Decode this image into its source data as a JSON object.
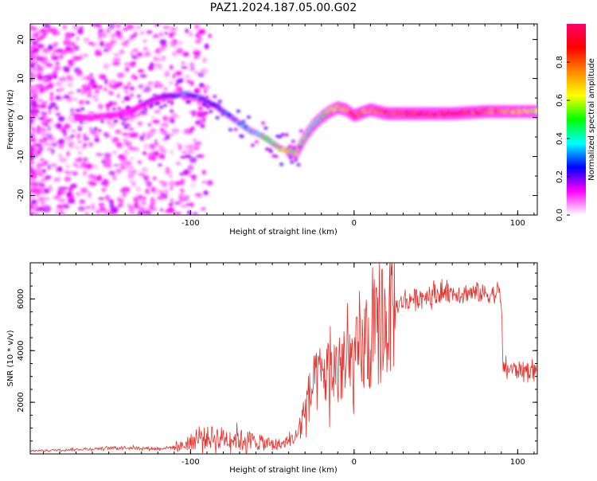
{
  "title": "PAZ1.2024.187.05.00.G02",
  "chart_data": [
    {
      "type": "heatmap",
      "xlabel": "Height of straight line (km)",
      "ylabel": "Frequency (Hz)",
      "xlim": [
        -198,
        112
      ],
      "ylim": [
        -25,
        24
      ],
      "xticks": [
        -100,
        0,
        100
      ],
      "yticks": [
        -20,
        -10,
        0,
        10,
        20
      ],
      "colorbar": {
        "label": "Normalized spectral amplitude",
        "range": [
          0,
          1
        ],
        "ticks": [
          "0.0",
          "0.2",
          "0.4",
          "0.6",
          "0.8"
        ],
        "colormap": [
          "#ffffff",
          "#ff00ff",
          "#0000ff",
          "#00ffff",
          "#00ff00",
          "#ffff00",
          "#ff8800",
          "#ff0000",
          "#ff0066"
        ]
      },
      "ridge": {
        "x": [
          -160,
          -140,
          -120,
          -105,
          -95,
          -85,
          -75,
          -65,
          -55,
          -45,
          -35,
          -30,
          -25,
          -20,
          -15,
          -10,
          -5,
          0,
          10,
          20,
          40,
          60,
          80,
          100,
          112
        ],
        "frequency": [
          0,
          1,
          5,
          6,
          5,
          3,
          0,
          -3,
          -5,
          -8,
          -9,
          -5,
          -2,
          0,
          1.5,
          2.5,
          2,
          0.5,
          2,
          1,
          1,
          1,
          1.5,
          1.5,
          1.5
        ],
        "amplitude": [
          0.12,
          0.12,
          0.18,
          0.3,
          0.28,
          0.25,
          0.3,
          0.35,
          0.45,
          0.6,
          0.55,
          0.5,
          0.45,
          0.5,
          0.6,
          0.65,
          0.7,
          0.8,
          0.75,
          0.9,
          0.95,
          0.95,
          0.85,
          0.7,
          0.6
        ]
      }
    },
    {
      "type": "line",
      "xlabel": "Height of straight line (km)",
      "ylabel": "SNR (10 * v/v)",
      "xlim": [
        -198,
        112
      ],
      "ylim": [
        0,
        7400
      ],
      "xticks": [
        -100,
        0,
        100
      ],
      "yticks": [
        2000,
        4000,
        6000
      ],
      "color": "#e8302b",
      "series": [
        {
          "x": [
            -198,
            -180,
            -160,
            -140,
            -120,
            -105,
            -95,
            -85,
            -75,
            -65,
            -55,
            -45,
            -40,
            -35,
            -30,
            -25,
            -20,
            -15,
            -10,
            -5,
            0,
            10,
            20,
            25,
            30,
            35,
            40,
            50,
            60,
            70,
            80,
            85,
            90,
            91,
            95,
            100,
            105,
            112
          ],
          "y": [
            120,
            150,
            200,
            250,
            200,
            300,
            600,
            650,
            600,
            550,
            400,
            350,
            500,
            700,
            1800,
            2600,
            3000,
            3200,
            3300,
            3400,
            3600,
            4200,
            5200,
            5700,
            5900,
            6000,
            6100,
            6200,
            6250,
            6250,
            6200,
            6200,
            6150,
            3300,
            3300,
            3250,
            3250,
            3200
          ]
        }
      ]
    }
  ]
}
